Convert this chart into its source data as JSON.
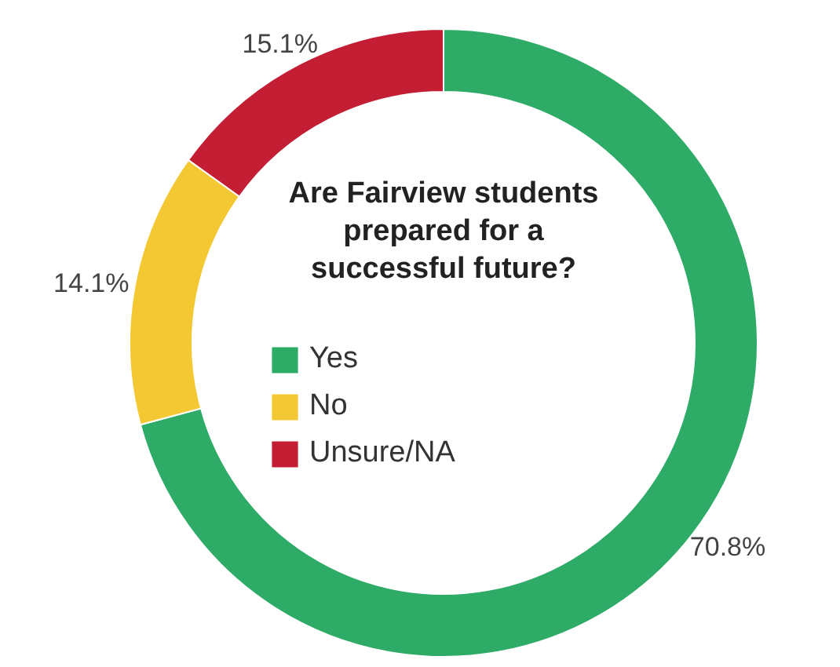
{
  "chart_data": {
    "type": "donut",
    "title": "Are Fairview students prepared for a successful future?",
    "categories": [
      "Yes",
      "No",
      "Unsure/NA"
    ],
    "values": [
      70.8,
      14.1,
      15.1
    ],
    "colors": [
      "#2eac67",
      "#f3c832",
      "#c41e34"
    ],
    "value_labels": [
      "70.8%",
      "14.1%",
      "15.1%"
    ],
    "legend": "center"
  }
}
